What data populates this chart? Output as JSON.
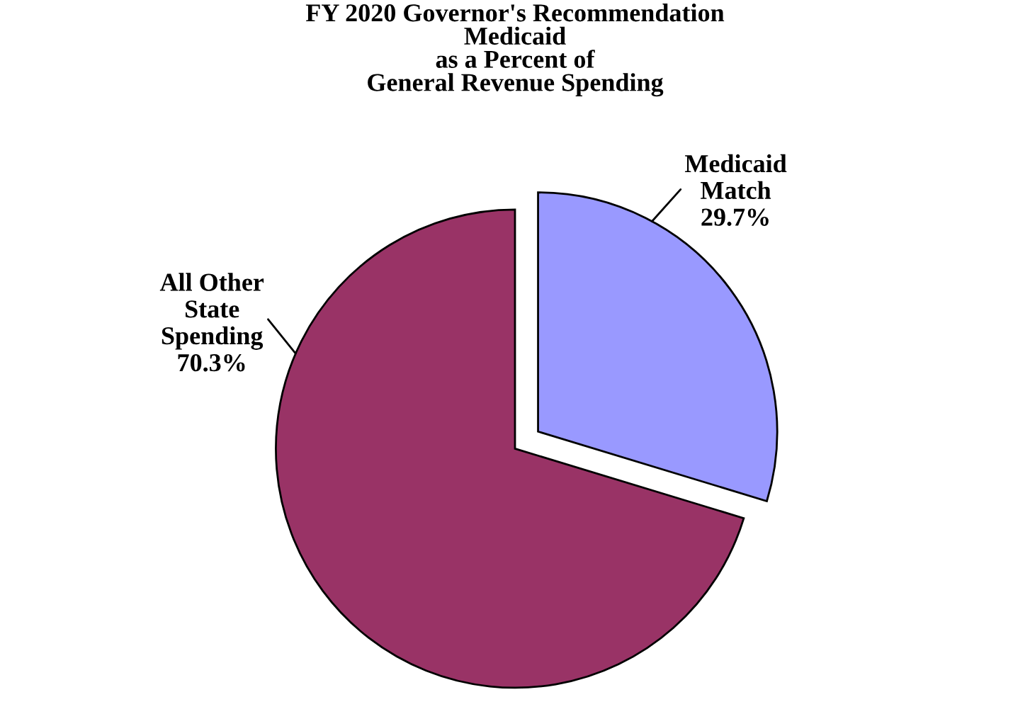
{
  "chart_data": {
    "type": "pie",
    "title": "FY 2020 Governor's Recommendation\nMedicaid\nas a Percent of\nGeneral Revenue Spending",
    "categories": [
      "Medicaid\nMatch",
      "All Other\nState\nSpending"
    ],
    "values": [
      29.7,
      70.3
    ],
    "colors": [
      "#9999ff",
      "#993366"
    ],
    "value_labels": [
      "29.7%",
      "70.3%"
    ]
  }
}
